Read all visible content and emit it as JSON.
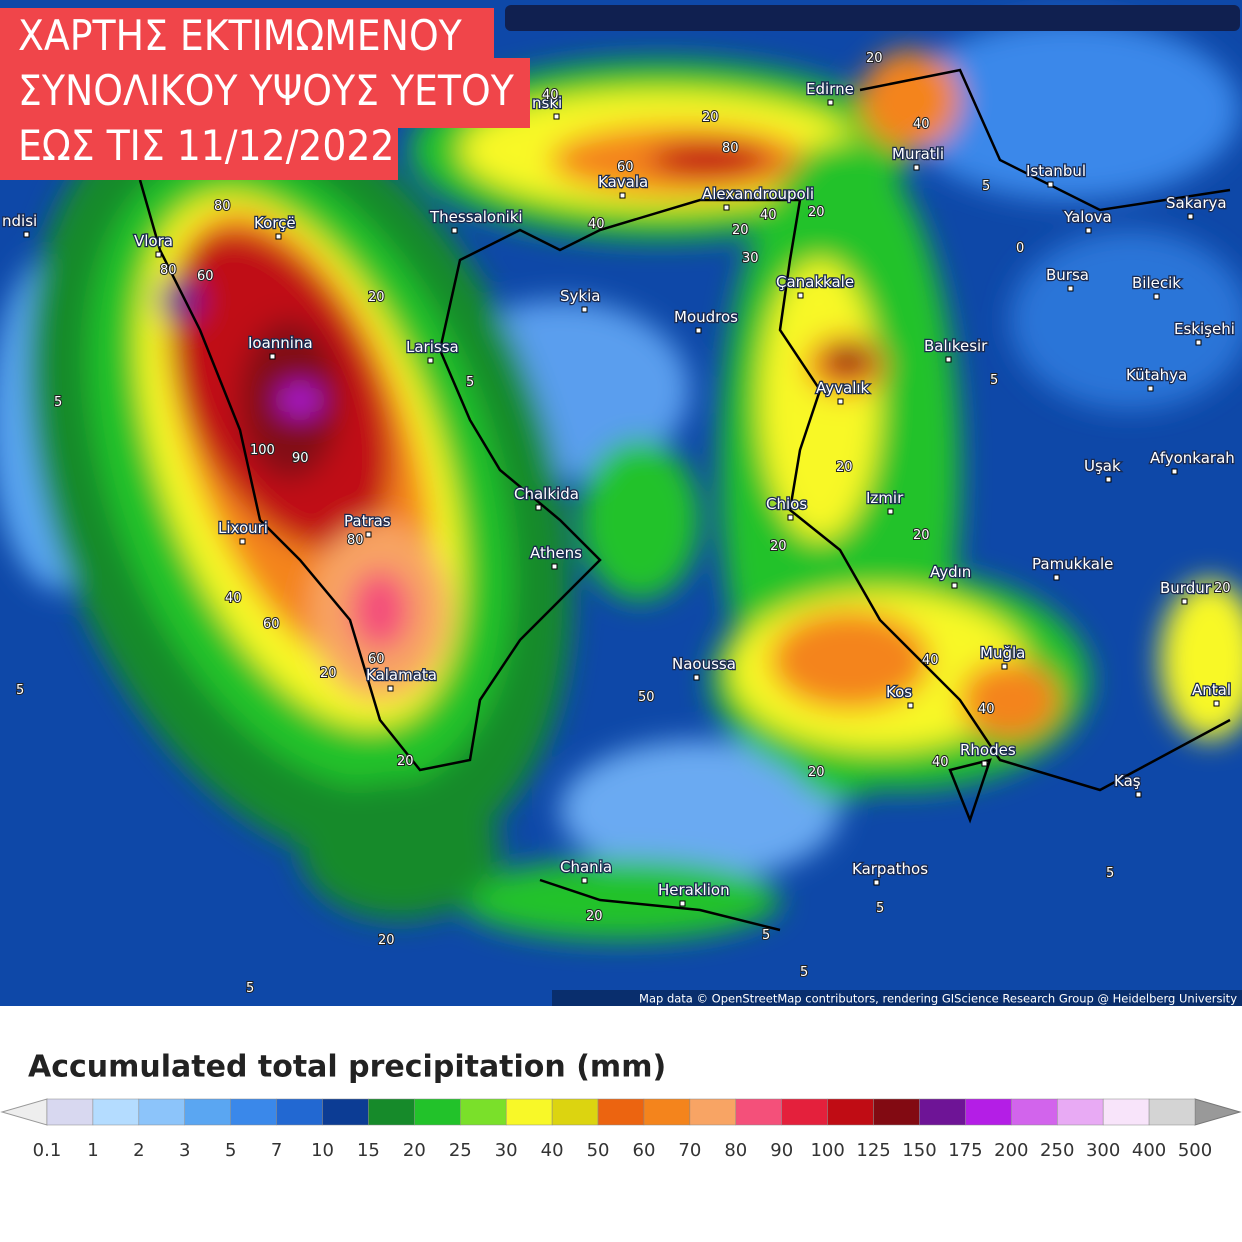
{
  "banner": {
    "lines": [
      "ΧΑΡΤΗΣ ΕΚΤΙΜΩΜΕΝΟΥ",
      "ΣΥΝΟΛΙΚΟΥ ΥΨΟΥΣ ΥΕΤΟΥ",
      "ΕΩΣ ΤΙΣ 11/12/2022"
    ]
  },
  "map": {
    "places": [
      "ndisi",
      "nski",
      "Edirne",
      "Muratli",
      "Istanbul",
      "Sakarya",
      "Yalova",
      "Bursa",
      "Bilecik",
      "Eskişehi",
      "Kütahya",
      "Balıkesir",
      "Ayvalık",
      "Çanakkale",
      "Moudros",
      "Alexandroupoli",
      "Kavala",
      "Thessaloniki",
      "Sykia",
      "Larissa",
      "Ioannina",
      "Korçë",
      "Vlora",
      "Patras",
      "Lixouri",
      "Chalkida",
      "Athens",
      "Chios",
      "Izmir",
      "Uşak",
      "Afyonkarah",
      "Pamukkale",
      "Burdur",
      "Aydın",
      "Muğla",
      "Kos",
      "Rhodes",
      "Kaş",
      "Antal",
      "Naoussa",
      "Kalamata",
      "Chania",
      "Heraklion",
      "Karpathos"
    ],
    "contour_labels": [
      40,
      20,
      80,
      60,
      40,
      40,
      20,
      20,
      30,
      40,
      20,
      5,
      0,
      80,
      60,
      80,
      20,
      5,
      5,
      100,
      90,
      80,
      40,
      60,
      20,
      60,
      20,
      5,
      20,
      20,
      20,
      40,
      40,
      40,
      20,
      50,
      5,
      20,
      20,
      20,
      5,
      5,
      5,
      5,
      5
    ],
    "attribution": "Map data © OpenStreetMap contributors, rendering GIScience Research Group @ Heidelberg University"
  },
  "legend": {
    "title": "Accumulated total precipitation (mm)",
    "ticks": [
      "0.1",
      "1",
      "2",
      "3",
      "5",
      "7",
      "10",
      "15",
      "20",
      "25",
      "30",
      "40",
      "50",
      "60",
      "70",
      "80",
      "90",
      "100",
      "125",
      "150",
      "175",
      "200",
      "250",
      "300",
      "400",
      "500"
    ],
    "colors": [
      "#d8d8f0",
      "#b4dcff",
      "#8cc4fa",
      "#5aa6f2",
      "#3a88ea",
      "#2268d2",
      "#0c3c94",
      "#168a2a",
      "#22c22a",
      "#7ae02a",
      "#f8f828",
      "#dcd410",
      "#ec6410",
      "#f4841c",
      "#f8a464",
      "#f4507a",
      "#e4203c",
      "#c00c14",
      "#820a12",
      "#6e1496",
      "#b41ee6",
      "#d264ec",
      "#e8aaf4",
      "#f8e4fa",
      "#d4d4d4"
    ]
  }
}
